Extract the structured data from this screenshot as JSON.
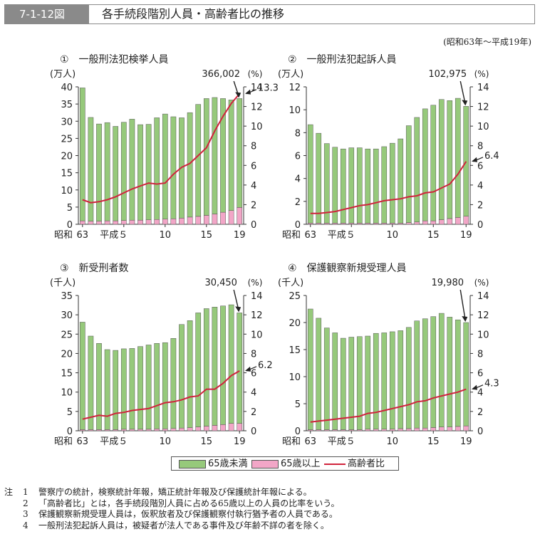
{
  "figure": {
    "number": "7-1-12図",
    "title": "各手続段階別人員・高齢者比の推移",
    "period": "(昭和63年～平成19年)"
  },
  "colors": {
    "under65": "#96c97b",
    "over65": "#f2a6c7",
    "ratio_line": "#d0233c"
  },
  "legend": {
    "under65": "65歳未満",
    "over65": "65歳以上",
    "ratio": "高齢者比"
  },
  "x_tick_labels": {
    "era": "昭和",
    "t63": "63",
    "t5": "平成５",
    "t10": "10",
    "t15": "15",
    "t19": "19"
  },
  "notes": {
    "head": "注",
    "items": [
      {
        "num": "1",
        "text": "警察庁の統計，検察統計年報，矯正統計年報及び保護統計年報による。"
      },
      {
        "num": "2",
        "text": "「高齢者比」とは，各手続段階別人員に占める65歳以上の人員の比率をいう。"
      },
      {
        "num": "3",
        "text": "保護観察新規受理人員は，仮釈放者及び保護観察付執行猶予者の人員である。"
      },
      {
        "num": "4",
        "text": "一般刑法犯起訴人員は，被疑者が法人である事件及び年齢不詳の者を除く。"
      }
    ]
  },
  "chart_data": [
    {
      "type": "bar",
      "title": "①　一般刑法犯検挙人員",
      "ylabel": "(万人)",
      "y2label": "(%)",
      "categories": [
        "63",
        "1",
        "2",
        "3",
        "4",
        "5",
        "6",
        "7",
        "8",
        "9",
        "10",
        "11",
        "12",
        "13",
        "14",
        "15",
        "16",
        "17",
        "18",
        "19"
      ],
      "ylim": [
        0,
        40
      ],
      "yticks": [
        0,
        5,
        10,
        15,
        20,
        25,
        30,
        35,
        40
      ],
      "y2lim": [
        0,
        14
      ],
      "y2ticks": [
        0,
        2,
        4,
        6,
        8,
        10,
        12,
        14
      ],
      "series": [
        {
          "name": "65歳未満",
          "values": [
            38.7,
            30.2,
            28.3,
            28.6,
            27.5,
            28.6,
            29.4,
            27.8,
            27.8,
            29.6,
            30.6,
            29.7,
            29.2,
            30.4,
            32.6,
            34.0,
            33.9,
            33.1,
            32.2,
            31.7
          ]
        },
        {
          "name": "65歳以上",
          "values": [
            1.0,
            0.9,
            0.9,
            1.0,
            1.0,
            1.1,
            1.2,
            1.2,
            1.3,
            1.4,
            1.5,
            1.6,
            1.8,
            2.1,
            2.3,
            2.6,
            3.0,
            3.5,
            4.0,
            4.9
          ]
        },
        {
          "name": "高齢者比",
          "axis": "right",
          "values": [
            2.5,
            2.2,
            2.3,
            2.5,
            2.8,
            3.2,
            3.6,
            3.9,
            4.2,
            4.1,
            4.2,
            5.1,
            5.8,
            6.2,
            7.0,
            7.8,
            9.5,
            11.0,
            12.3,
            13.3
          ]
        }
      ],
      "annotation_total": "366,002",
      "annotation_ratio": "13.3"
    },
    {
      "type": "bar",
      "title": "②　一般刑法犯起訴人員",
      "ylabel": "(万人)",
      "y2label": "(%)",
      "categories": [
        "63",
        "1",
        "2",
        "3",
        "4",
        "5",
        "6",
        "7",
        "8",
        "9",
        "10",
        "11",
        "12",
        "13",
        "14",
        "15",
        "16",
        "17",
        "18",
        "19"
      ],
      "ylim": [
        0,
        12
      ],
      "yticks": [
        0,
        2,
        4,
        6,
        8,
        10,
        12
      ],
      "y2lim": [
        0,
        14
      ],
      "y2ticks": [
        0,
        2,
        4,
        6,
        8,
        10,
        12,
        14
      ],
      "series": [
        {
          "name": "65歳未満",
          "values": [
            8.6,
            7.85,
            6.95,
            6.63,
            6.48,
            6.58,
            6.58,
            6.48,
            6.48,
            6.68,
            6.98,
            7.36,
            8.46,
            9.13,
            9.78,
            10.1,
            10.5,
            10.3,
            10.4,
            9.6
          ]
        },
        {
          "name": "65歳以上",
          "values": [
            0.1,
            0.1,
            0.1,
            0.1,
            0.1,
            0.1,
            0.1,
            0.1,
            0.1,
            0.1,
            0.1,
            0.1,
            0.15,
            0.2,
            0.3,
            0.3,
            0.4,
            0.5,
            0.6,
            0.7
          ]
        },
        {
          "name": "高齢者比",
          "axis": "right",
          "values": [
            1.1,
            1.1,
            1.2,
            1.3,
            1.5,
            1.7,
            1.9,
            2.0,
            2.2,
            2.4,
            2.5,
            2.6,
            2.8,
            2.9,
            3.2,
            3.3,
            3.7,
            4.1,
            5.1,
            6.4
          ]
        }
      ],
      "annotation_total": "102,975",
      "annotation_ratio": "6.4"
    },
    {
      "type": "bar",
      "title": "③　新受刑者数",
      "ylabel": "(千人)",
      "y2label": "(%)",
      "categories": [
        "63",
        "1",
        "2",
        "3",
        "4",
        "5",
        "6",
        "7",
        "8",
        "9",
        "10",
        "11",
        "12",
        "13",
        "14",
        "15",
        "16",
        "17",
        "18",
        "19"
      ],
      "ylim": [
        0,
        35
      ],
      "yticks": [
        0,
        5,
        10,
        15,
        20,
        25,
        30,
        35
      ],
      "y2lim": [
        0,
        14
      ],
      "y2ticks": [
        0,
        2,
        4,
        6,
        8,
        10,
        12,
        14
      ],
      "series": [
        {
          "name": "65歳未満",
          "values": [
            27.8,
            24.2,
            22.3,
            20.7,
            20.5,
            20.8,
            20.9,
            21.4,
            21.8,
            22.1,
            22.3,
            23.3,
            26.8,
            27.7,
            29.5,
            30.4,
            30.6,
            30.7,
            30.7,
            28.6
          ]
        },
        {
          "name": "65歳以上",
          "values": [
            0.3,
            0.3,
            0.3,
            0.3,
            0.3,
            0.4,
            0.4,
            0.4,
            0.4,
            0.5,
            0.5,
            0.6,
            0.7,
            0.8,
            1.0,
            1.2,
            1.4,
            1.6,
            1.9,
            1.9
          ]
        },
        {
          "name": "高齢者比",
          "axis": "right",
          "values": [
            1.2,
            1.4,
            1.6,
            1.5,
            1.8,
            1.9,
            2.1,
            2.2,
            2.3,
            2.6,
            2.9,
            3.0,
            3.2,
            3.5,
            3.6,
            4.3,
            4.3,
            4.9,
            5.7,
            6.2
          ]
        }
      ],
      "annotation_total": "30,450",
      "annotation_ratio": "6.2"
    },
    {
      "type": "bar",
      "title": "④　保護観察新規受理人員",
      "ylabel": "(千人)",
      "y2label": "(%)",
      "categories": [
        "63",
        "1",
        "2",
        "3",
        "4",
        "5",
        "6",
        "7",
        "8",
        "9",
        "10",
        "11",
        "12",
        "13",
        "14",
        "15",
        "16",
        "17",
        "18",
        "19"
      ],
      "ylim": [
        0,
        25
      ],
      "yticks": [
        0,
        5,
        10,
        15,
        20,
        25
      ],
      "y2lim": [
        0,
        14
      ],
      "y2ticks": [
        0,
        2,
        4,
        6,
        8,
        10,
        12,
        14
      ],
      "series": [
        {
          "name": "65歳未満",
          "values": [
            22.3,
            20.6,
            18.8,
            17.9,
            16.9,
            17.1,
            17.2,
            17.2,
            17.7,
            17.8,
            18.0,
            18.1,
            18.7,
            19.8,
            20.2,
            20.5,
            21.0,
            20.3,
            19.7,
            19.1
          ]
        },
        {
          "name": "65歳以上",
          "values": [
            0.2,
            0.2,
            0.2,
            0.2,
            0.2,
            0.2,
            0.2,
            0.3,
            0.3,
            0.3,
            0.3,
            0.4,
            0.4,
            0.5,
            0.5,
            0.6,
            0.7,
            0.7,
            0.8,
            0.9
          ]
        },
        {
          "name": "高齢者比",
          "axis": "right",
          "values": [
            0.9,
            1.0,
            1.1,
            1.2,
            1.3,
            1.4,
            1.5,
            1.8,
            1.9,
            2.1,
            2.3,
            2.5,
            2.7,
            3.0,
            3.1,
            3.4,
            3.6,
            3.8,
            4.0,
            4.3
          ]
        }
      ],
      "annotation_total": "19,980",
      "annotation_ratio": "4.3"
    }
  ]
}
